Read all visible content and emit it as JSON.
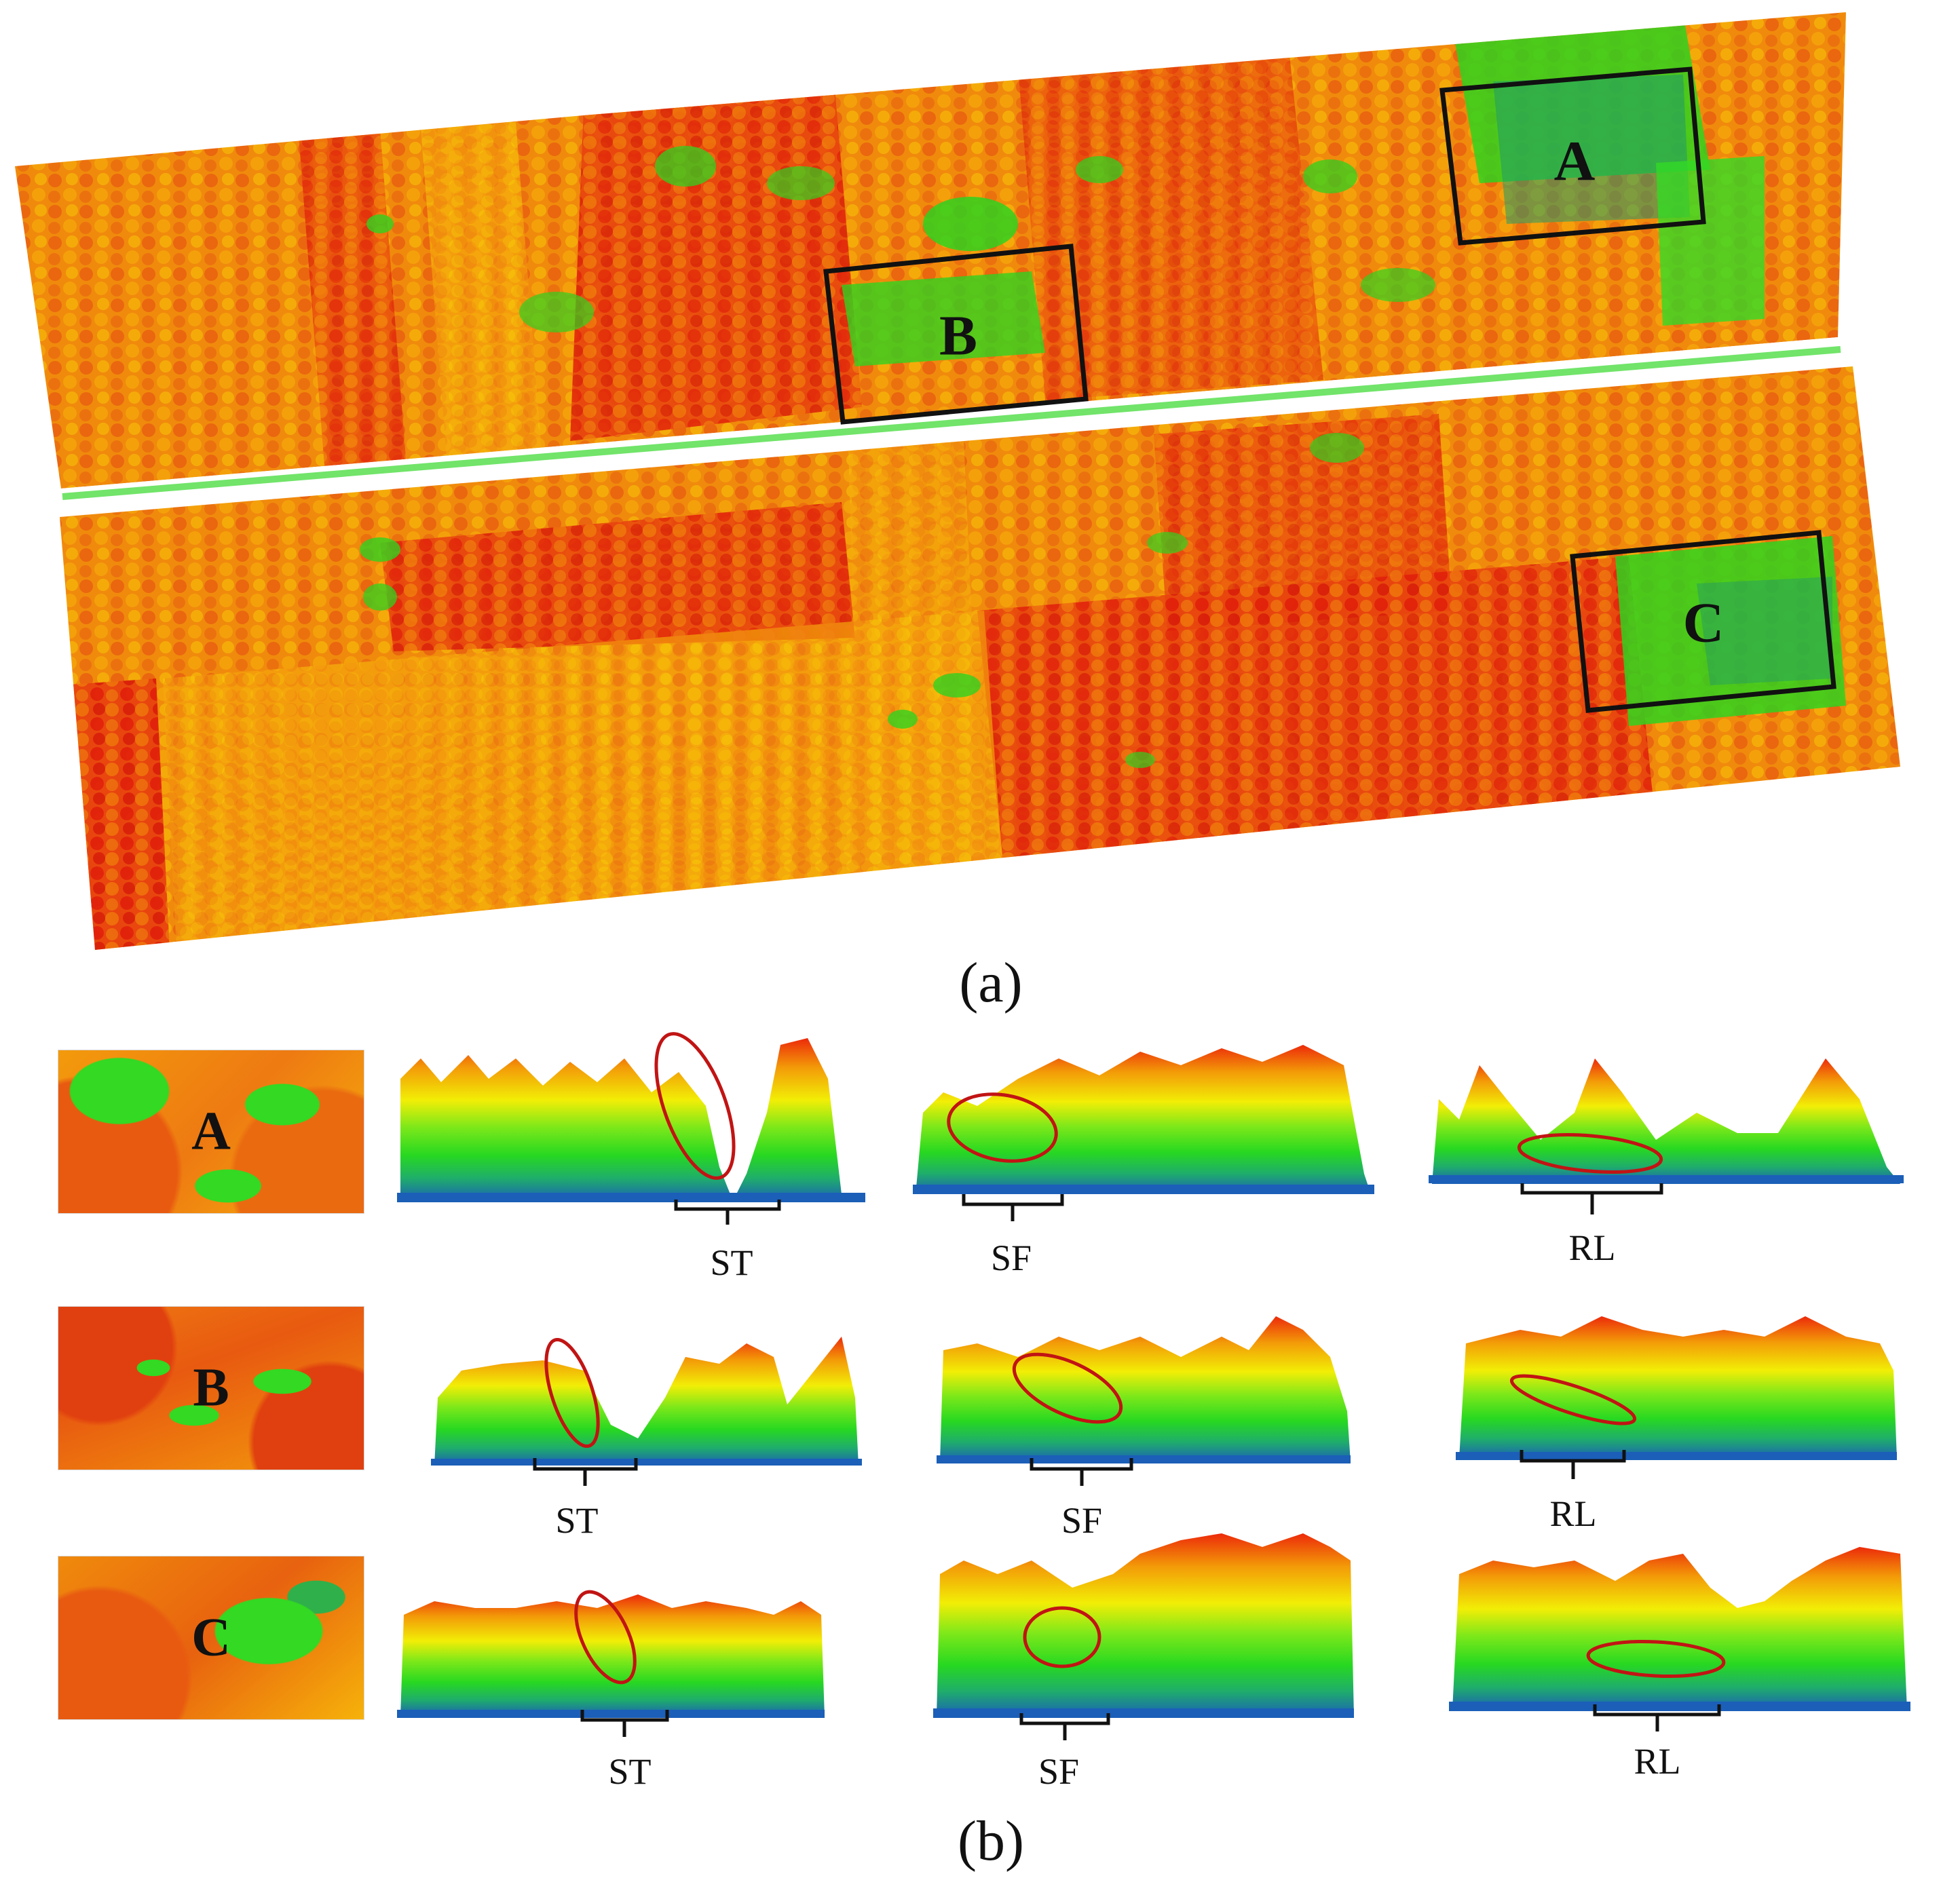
{
  "captions": {
    "a": "(a)",
    "b": "(b)"
  },
  "boxes": {
    "A": "A",
    "B": "B",
    "C": "C"
  },
  "profiles": {
    "row1": [
      "ST",
      "SF",
      "RL"
    ],
    "row2": [
      "ST",
      "SF",
      "RL"
    ],
    "row3": [
      "ST",
      "SF",
      "RL"
    ]
  },
  "colors": {
    "high": "#e01b0b",
    "mid": "#f39a08",
    "low": "#f7e000",
    "understory": "#27d821",
    "ground": "#1b5fb8",
    "ellipse": "#c11414",
    "box": "#111111"
  }
}
